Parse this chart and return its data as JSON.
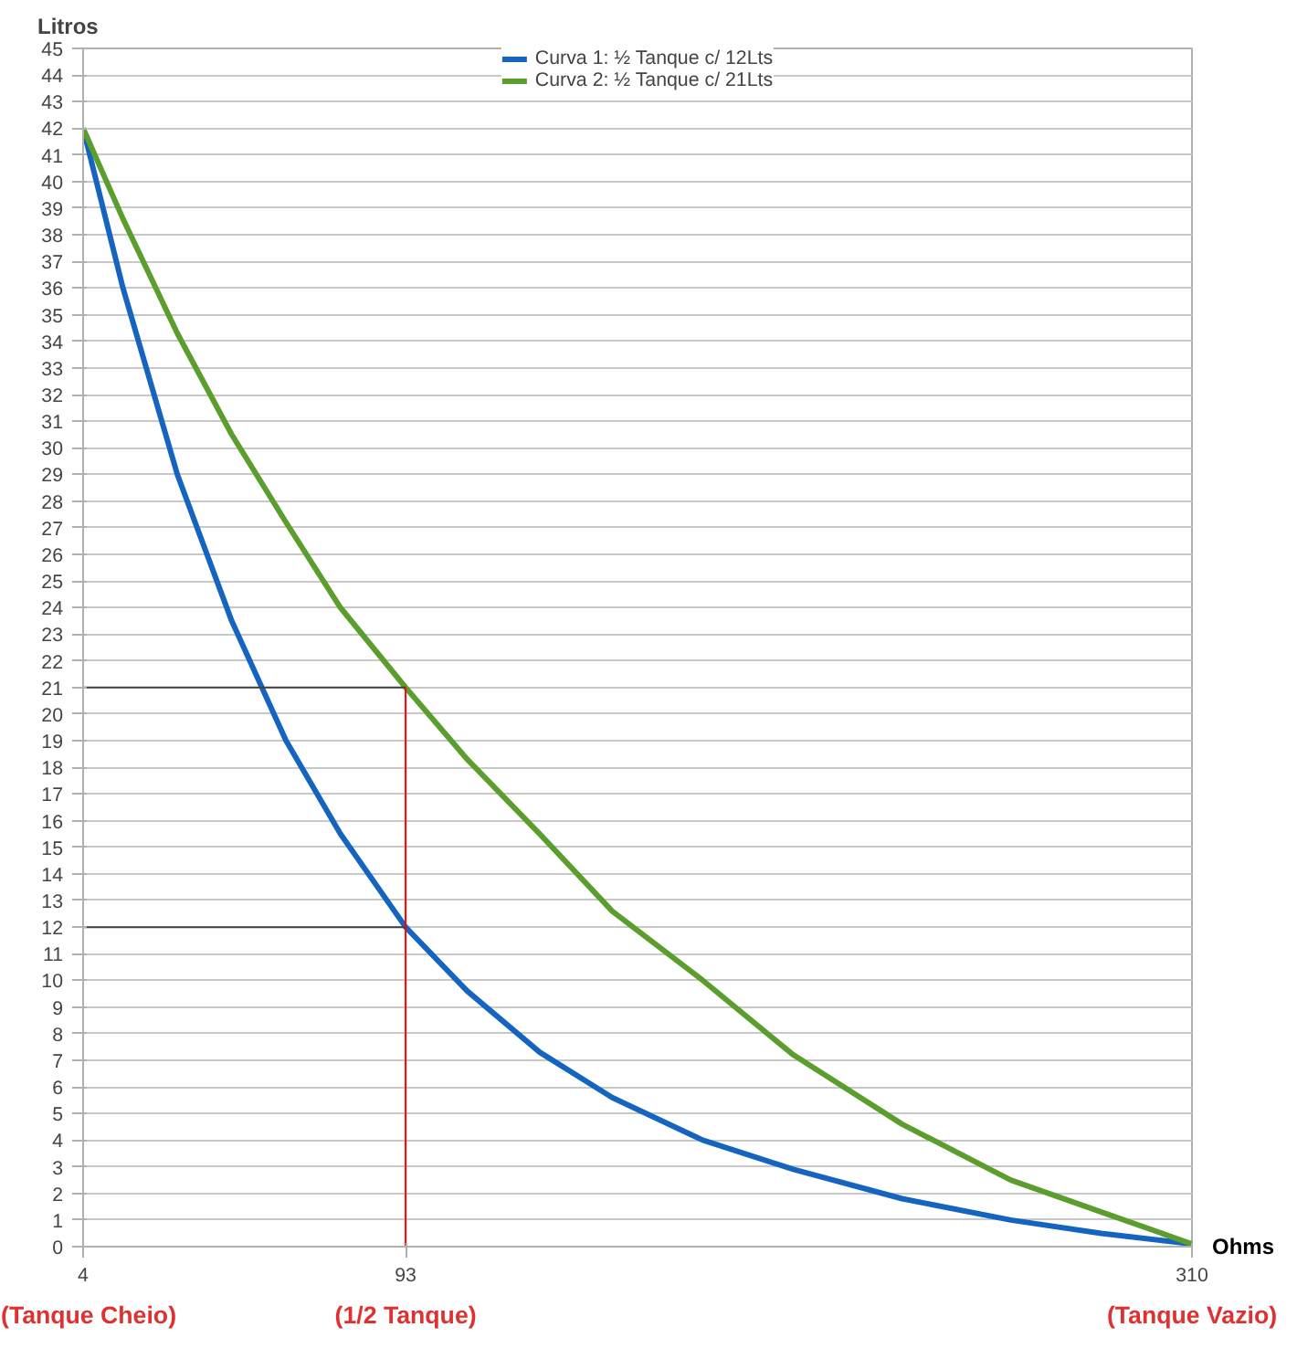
{
  "chart_data": {
    "type": "line",
    "xlabel": "Ohms",
    "ylabel": "Litros",
    "xlim": [
      4,
      310
    ],
    "ylim": [
      0,
      45
    ],
    "xticks": [
      4,
      93,
      310
    ],
    "yticks": [
      0,
      1,
      2,
      3,
      4,
      5,
      6,
      7,
      8,
      9,
      10,
      11,
      12,
      13,
      14,
      15,
      16,
      17,
      18,
      19,
      20,
      21,
      22,
      23,
      24,
      25,
      26,
      27,
      28,
      29,
      30,
      31,
      32,
      33,
      34,
      35,
      36,
      37,
      38,
      39,
      40,
      41,
      42,
      43,
      44,
      45
    ],
    "grid": "y",
    "legend": "top",
    "line_style": "solid",
    "marker": "none",
    "series": [
      {
        "name": "Curva 1: ½ Tanque c/ 12Lts",
        "color": "#1565c0",
        "x": [
          4,
          15,
          30,
          45,
          60,
          75,
          93,
          110,
          130,
          150,
          175,
          200,
          230,
          260,
          285,
          310
        ],
        "values": [
          42,
          36,
          29,
          23.5,
          19,
          15.5,
          12,
          9.6,
          7.3,
          5.6,
          4.0,
          2.9,
          1.8,
          1.0,
          0.5,
          0.1
        ]
      },
      {
        "name": "Curva 2: ½ Tanque c/ 21Lts",
        "color": "#5c9e2e",
        "x": [
          4,
          15,
          30,
          45,
          60,
          75,
          93,
          110,
          130,
          150,
          175,
          200,
          230,
          260,
          285,
          310
        ],
        "values": [
          42,
          38.6,
          34.3,
          30.5,
          27.2,
          24,
          21,
          18.3,
          15.5,
          12.6,
          10.0,
          7.2,
          4.6,
          2.5,
          1.3,
          0.1
        ]
      },
      {
        "color": "#404040",
        "x": [
          4,
          93
        ],
        "values": [
          21,
          21
        ]
      },
      {
        "color": "#404040",
        "x": [
          4,
          93
        ],
        "values": [
          12,
          12
        ]
      },
      {
        "color": "#ff0000",
        "x": [
          93,
          93
        ],
        "values": [
          0,
          21
        ]
      }
    ],
    "annotations": [
      "(Tanque Cheio)",
      "(1/2 Tanque)",
      "(Tanque Vazio)"
    ]
  }
}
